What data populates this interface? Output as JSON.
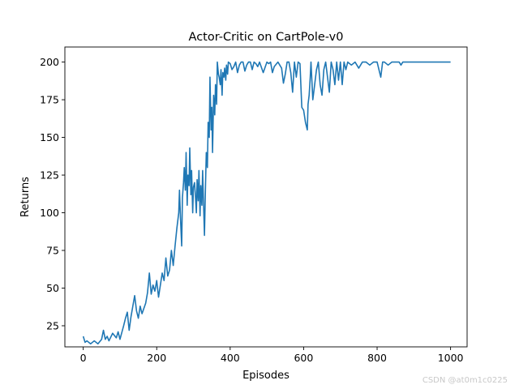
{
  "chart_data": {
    "type": "line",
    "title": "Actor-Critic on CartPole-v0",
    "xlabel": "Episodes",
    "ylabel": "Returns",
    "xlim": [
      -50,
      1045
    ],
    "ylim": [
      11,
      210
    ],
    "xticks": [
      0,
      200,
      400,
      600,
      800,
      1000
    ],
    "yticks": [
      25,
      50,
      75,
      100,
      125,
      150,
      175,
      200
    ],
    "grid": false,
    "series": [
      {
        "color": "#1f77b4",
        "x": [
          0,
          5,
          10,
          20,
          30,
          40,
          50,
          55,
          60,
          65,
          70,
          80,
          90,
          95,
          100,
          110,
          115,
          120,
          125,
          130,
          140,
          145,
          150,
          155,
          160,
          170,
          175,
          180,
          185,
          190,
          195,
          200,
          205,
          210,
          215,
          220,
          225,
          230,
          235,
          240,
          245,
          250,
          255,
          260,
          262,
          265,
          268,
          270,
          273,
          275,
          278,
          280,
          283,
          285,
          288,
          290,
          293,
          295,
          298,
          300,
          303,
          305,
          308,
          310,
          313,
          315,
          318,
          320,
          323,
          325,
          328,
          330,
          333,
          335,
          338,
          340,
          343,
          345,
          348,
          350,
          352,
          355,
          358,
          360,
          363,
          365,
          368,
          370,
          373,
          375,
          378,
          380,
          383,
          385,
          388,
          390,
          393,
          395,
          400,
          405,
          410,
          415,
          420,
          425,
          430,
          435,
          440,
          445,
          450,
          455,
          460,
          465,
          470,
          475,
          480,
          490,
          500,
          505,
          510,
          515,
          520,
          530,
          540,
          545,
          550,
          555,
          560,
          565,
          570,
          575,
          580,
          585,
          590,
          595,
          600,
          605,
          610,
          612,
          615,
          618,
          620,
          625,
          630,
          635,
          640,
          645,
          650,
          655,
          660,
          665,
          670,
          675,
          680,
          685,
          690,
          695,
          700,
          705,
          710,
          715,
          720,
          730,
          740,
          750,
          760,
          770,
          780,
          790,
          800,
          805,
          810,
          815,
          820,
          830,
          840,
          850,
          860,
          865,
          870,
          880,
          900,
          950,
          1000
        ],
        "y": [
          18,
          14,
          15,
          13,
          15,
          13,
          16,
          22,
          16,
          18,
          15,
          20,
          17,
          21,
          16,
          25,
          30,
          34,
          22,
          31,
          45,
          35,
          30,
          38,
          33,
          40,
          47,
          60,
          46,
          52,
          48,
          55,
          44,
          52,
          60,
          55,
          70,
          58,
          62,
          75,
          65,
          78,
          90,
          100,
          115,
          95,
          78,
          110,
          120,
          130,
          115,
          140,
          105,
          125,
          118,
          143,
          112,
          128,
          100,
          117,
          120,
          113,
          100,
          122,
          108,
          128,
          98,
          118,
          105,
          128,
          102,
          85,
          120,
          140,
          130,
          160,
          150,
          190,
          155,
          170,
          140,
          178,
          165,
          185,
          172,
          200,
          192,
          190,
          185,
          195,
          178,
          193,
          190,
          196,
          188,
          198,
          192,
          200,
          199,
          195,
          197,
          200,
          193,
          198,
          200,
          200,
          194,
          198,
          200,
          200,
          195,
          200,
          199,
          197,
          200,
          193,
          200,
          199,
          200,
          193,
          197,
          200,
          196,
          186,
          192,
          200,
          200,
          193,
          180,
          200,
          190,
          200,
          199,
          170,
          168,
          160,
          155,
          172,
          178,
          190,
          200,
          175,
          185,
          195,
          200,
          185,
          178,
          195,
          200,
          190,
          180,
          200,
          195,
          185,
          200,
          188,
          200,
          185,
          200,
          195,
          200,
          198,
          200,
          196,
          200,
          200,
          198,
          200,
          200,
          195,
          190,
          200,
          200,
          198,
          200,
          200,
          200,
          198,
          200,
          200,
          200,
          200,
          200
        ]
      }
    ]
  },
  "watermark": "CSDN @at0m1c0225"
}
